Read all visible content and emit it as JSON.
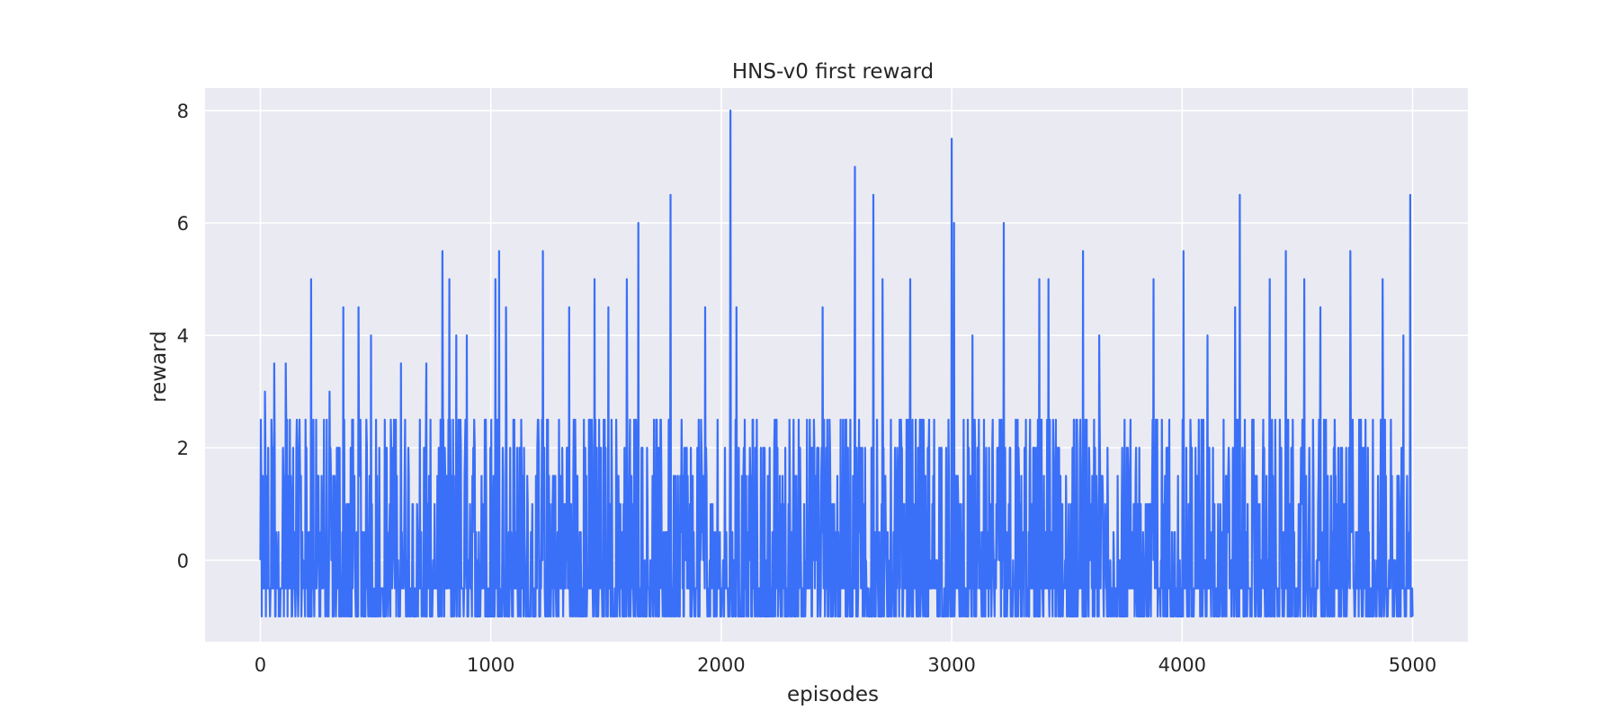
{
  "chart_data": {
    "type": "line",
    "title": "HNS-v0 first reward",
    "xlabel": "episodes",
    "ylabel": "reward",
    "xlim": [
      -240,
      5240
    ],
    "ylim": [
      -1.45,
      8.4
    ],
    "x_ticks": [
      0,
      1000,
      2000,
      3000,
      4000,
      5000
    ],
    "y_ticks": [
      0,
      2,
      4,
      6,
      8
    ],
    "grid": true,
    "legend": "none",
    "series_color": "#3a6ff7",
    "background_color": "#eaeaf2",
    "series": [
      {
        "episodes_range": [
          0,
          5000
        ],
        "sampling": "estimated envelope of a dense per-episode reward trace, value levels in steps of 0.5",
        "peaks": [
          {
            "x": 20,
            "y": 3.0
          },
          {
            "x": 60,
            "y": 3.5
          },
          {
            "x": 110,
            "y": 3.5
          },
          {
            "x": 170,
            "y": 2.5
          },
          {
            "x": 220,
            "y": 5.0
          },
          {
            "x": 300,
            "y": 3.0
          },
          {
            "x": 360,
            "y": 4.5
          },
          {
            "x": 425,
            "y": 4.5
          },
          {
            "x": 480,
            "y": 4.0
          },
          {
            "x": 610,
            "y": 3.5
          },
          {
            "x": 720,
            "y": 3.5
          },
          {
            "x": 790,
            "y": 5.5
          },
          {
            "x": 820,
            "y": 5.0
          },
          {
            "x": 850,
            "y": 4.0
          },
          {
            "x": 895,
            "y": 4.0
          },
          {
            "x": 1020,
            "y": 5.0
          },
          {
            "x": 1035,
            "y": 5.5
          },
          {
            "x": 1065,
            "y": 4.5
          },
          {
            "x": 1225,
            "y": 5.5
          },
          {
            "x": 1340,
            "y": 4.5
          },
          {
            "x": 1450,
            "y": 5.0
          },
          {
            "x": 1510,
            "y": 4.5
          },
          {
            "x": 1590,
            "y": 5.0
          },
          {
            "x": 1640,
            "y": 6.0
          },
          {
            "x": 1780,
            "y": 6.5
          },
          {
            "x": 1930,
            "y": 4.5
          },
          {
            "x": 2040,
            "y": 8.0
          },
          {
            "x": 2065,
            "y": 4.5
          },
          {
            "x": 2440,
            "y": 4.5
          },
          {
            "x": 2580,
            "y": 7.0
          },
          {
            "x": 2660,
            "y": 6.5
          },
          {
            "x": 2700,
            "y": 5.0
          },
          {
            "x": 2820,
            "y": 5.0
          },
          {
            "x": 3000,
            "y": 7.5
          },
          {
            "x": 3010,
            "y": 6.0
          },
          {
            "x": 3090,
            "y": 4.0
          },
          {
            "x": 3225,
            "y": 6.0
          },
          {
            "x": 3380,
            "y": 5.0
          },
          {
            "x": 3420,
            "y": 5.0
          },
          {
            "x": 3570,
            "y": 5.5
          },
          {
            "x": 3640,
            "y": 4.0
          },
          {
            "x": 3875,
            "y": 5.0
          },
          {
            "x": 4005,
            "y": 5.5
          },
          {
            "x": 4110,
            "y": 4.0
          },
          {
            "x": 4230,
            "y": 4.5
          },
          {
            "x": 4250,
            "y": 6.5
          },
          {
            "x": 4380,
            "y": 5.0
          },
          {
            "x": 4450,
            "y": 5.5
          },
          {
            "x": 4530,
            "y": 5.0
          },
          {
            "x": 4600,
            "y": 4.5
          },
          {
            "x": 4730,
            "y": 5.5
          },
          {
            "x": 4870,
            "y": 5.0
          },
          {
            "x": 4960,
            "y": 4.0
          },
          {
            "x": 4990,
            "y": 6.5
          }
        ],
        "min_value": -1.0,
        "typical_band": [
          -1.0,
          2.5
        ]
      }
    ]
  }
}
